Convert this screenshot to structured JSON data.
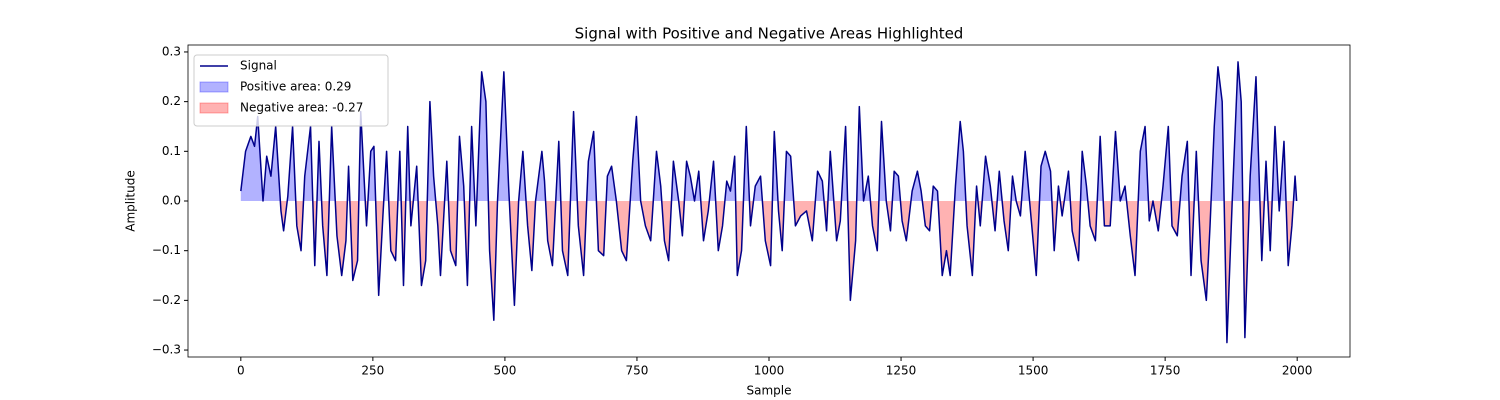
{
  "chart_data": {
    "type": "line",
    "title": "Signal with Positive and Negative Areas Highlighted",
    "x_label": "Sample",
    "y_label": "Amplitude",
    "legend": "upper left",
    "x": [
      0,
      9,
      19,
      26,
      32,
      42,
      49,
      57,
      66,
      76,
      81,
      89,
      98,
      106,
      114,
      121,
      132,
      140,
      148,
      155,
      163,
      172,
      182,
      191,
      199,
      204,
      212,
      221,
      227,
      238,
      246,
      252,
      261,
      269,
      276,
      284,
      293,
      301,
      308,
      316,
      322,
      333,
      342,
      350,
      358,
      365,
      373,
      378,
      390,
      397,
      407,
      414,
      422,
      429,
      437,
      445,
      456,
      464,
      471,
      479,
      486,
      498,
      507,
      518,
      526,
      534,
      543,
      551,
      558,
      570,
      575,
      581,
      590,
      602,
      609,
      619,
      630,
      639,
      649,
      658,
      668,
      677,
      687,
      694,
      702,
      711,
      721,
      730,
      742,
      749,
      757,
      766,
      776,
      787,
      795,
      802,
      810,
      819,
      829,
      836,
      844,
      851,
      859,
      867,
      876,
      885,
      895,
      904,
      912,
      920,
      927,
      935,
      940,
      948,
      957,
      965,
      974,
      984,
      993,
      1003,
      1010,
      1018,
      1025,
      1033,
      1041,
      1050,
      1060,
      1071,
      1082,
      1092,
      1101,
      1109,
      1116,
      1128,
      1135,
      1145,
      1154,
      1164,
      1171,
      1179,
      1188,
      1196,
      1205,
      1213,
      1222,
      1230,
      1237,
      1245,
      1252,
      1260,
      1271,
      1281,
      1288,
      1296,
      1304,
      1311,
      1319,
      1328,
      1336,
      1343,
      1353,
      1362,
      1368,
      1375,
      1385,
      1393,
      1400,
      1410,
      1419,
      1428,
      1436,
      1445,
      1453,
      1461,
      1468,
      1476,
      1485,
      1495,
      1506,
      1515,
      1523,
      1533,
      1540,
      1548,
      1555,
      1567,
      1574,
      1586,
      1593,
      1601,
      1608,
      1618,
      1627,
      1635,
      1646,
      1656,
      1665,
      1674,
      1684,
      1693,
      1703,
      1712,
      1720,
      1727,
      1737,
      1746,
      1756,
      1763,
      1773,
      1782,
      1792,
      1799,
      1809,
      1818,
      1828,
      1835,
      1843,
      1850,
      1858,
      1867,
      1877,
      1888,
      1894,
      1901,
      1911,
      1922,
      1933,
      1941,
      1949,
      1958,
      1966,
      1975,
      1983,
      1990,
      1996,
      1999
    ],
    "series": [
      {
        "name": "Signal",
        "color": "#00008b",
        "values": [
          0.02,
          0.1,
          0.13,
          0.11,
          0.17,
          0.0,
          0.09,
          0.05,
          0.15,
          -0.02,
          -0.06,
          0.01,
          0.15,
          -0.05,
          -0.1,
          0.05,
          0.15,
          -0.13,
          0.12,
          -0.05,
          -0.15,
          0.15,
          -0.07,
          -0.15,
          -0.08,
          0.07,
          -0.16,
          -0.12,
          0.18,
          -0.05,
          0.1,
          0.11,
          -0.19,
          -0.03,
          0.1,
          -0.1,
          -0.12,
          0.1,
          -0.17,
          0.15,
          -0.05,
          0.07,
          -0.17,
          -0.12,
          0.2,
          0.05,
          -0.05,
          -0.15,
          0.08,
          -0.1,
          -0.13,
          0.13,
          0.03,
          -0.17,
          0.15,
          -0.05,
          0.26,
          0.2,
          -0.1,
          -0.24,
          0.0,
          0.26,
          0.03,
          -0.21,
          0.0,
          0.1,
          -0.05,
          -0.14,
          0.0,
          0.1,
          0.04,
          -0.08,
          -0.13,
          0.12,
          -0.1,
          -0.15,
          0.18,
          -0.05,
          -0.15,
          0.08,
          0.14,
          -0.1,
          -0.11,
          0.05,
          0.07,
          0.0,
          -0.1,
          -0.12,
          0.08,
          0.17,
          0.0,
          -0.05,
          -0.08,
          0.1,
          0.03,
          -0.08,
          -0.12,
          0.08,
          0.0,
          -0.07,
          0.08,
          0.05,
          0.0,
          0.06,
          -0.08,
          -0.02,
          0.08,
          -0.1,
          -0.05,
          0.04,
          0.02,
          0.09,
          -0.15,
          -0.1,
          0.15,
          -0.05,
          0.03,
          0.05,
          -0.08,
          -0.13,
          0.14,
          -0.02,
          -0.1,
          0.1,
          0.09,
          -0.05,
          -0.03,
          -0.02,
          -0.08,
          0.06,
          0.04,
          -0.06,
          0.1,
          -0.08,
          -0.04,
          0.15,
          -0.2,
          -0.08,
          0.19,
          0.0,
          0.05,
          -0.05,
          -0.1,
          0.16,
          0.0,
          -0.06,
          0.06,
          0.05,
          -0.04,
          -0.08,
          0.02,
          0.06,
          0.02,
          -0.05,
          -0.06,
          0.03,
          0.02,
          -0.15,
          -0.1,
          -0.15,
          0.03,
          0.16,
          0.1,
          -0.05,
          -0.15,
          0.03,
          -0.05,
          0.09,
          0.03,
          -0.06,
          0.06,
          -0.04,
          -0.1,
          0.05,
          0.0,
          -0.03,
          0.1,
          -0.02,
          -0.15,
          0.07,
          0.1,
          0.06,
          -0.1,
          0.03,
          -0.03,
          0.06,
          -0.06,
          -0.12,
          0.1,
          0.03,
          -0.05,
          -0.08,
          0.13,
          -0.05,
          -0.05,
          0.14,
          0.0,
          0.03,
          -0.07,
          -0.15,
          0.1,
          0.15,
          -0.04,
          0.0,
          -0.06,
          0.03,
          0.15,
          -0.05,
          -0.07,
          0.05,
          0.12,
          -0.15,
          0.1,
          -0.12,
          -0.2,
          -0.05,
          0.15,
          0.27,
          0.2,
          -0.285,
          0.0,
          0.28,
          0.2,
          -0.275,
          0.05,
          0.25,
          -0.12,
          0.08,
          -0.1,
          0.15,
          -0.02,
          0.12,
          -0.13,
          -0.05,
          0.05,
          0.0
        ]
      }
    ],
    "fills": [
      {
        "name": "Positive area: 0.29",
        "color": "#0000ff",
        "side": "positive"
      },
      {
        "name": "Negative area: -0.27",
        "color": "#ff0000",
        "side": "negative"
      }
    ],
    "xlim": [
      -100,
      2100
    ],
    "ylim": [
      -0.314,
      0.314
    ],
    "xticks": [
      0,
      250,
      500,
      750,
      1000,
      1250,
      1500,
      1750,
      2000
    ],
    "yticks": [
      {
        "value": -0.3,
        "label": "−0.3"
      },
      {
        "value": -0.2,
        "label": "−0.2"
      },
      {
        "value": -0.1,
        "label": "−0.1"
      },
      {
        "value": 0,
        "label": "0.0"
      },
      0.1,
      0.2,
      0.3
    ],
    "grid": false
  }
}
